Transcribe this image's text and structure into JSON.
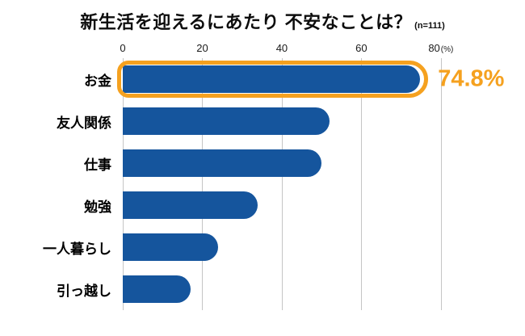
{
  "title": "新生活を迎えるにあたり 不安なことは？",
  "sample_note": "(n=111)",
  "colors": {
    "bar": "#15559D",
    "highlight": "#F5A11F",
    "grid": "#C5C5C5"
  },
  "chart_data": {
    "type": "bar",
    "orientation": "horizontal",
    "title": "新生活を迎えるにあたり 不安なことは？",
    "sample_note": "(n=111)",
    "categories": [
      "お金",
      "友人関係",
      "仕事",
      "勉強",
      "一人暮らし",
      "引っ越し"
    ],
    "values": [
      74.8,
      52,
      50,
      34,
      24,
      17
    ],
    "unit": "%",
    "x_ticks": [
      0,
      20,
      40,
      60,
      80
    ],
    "x_unit_label": "(%)",
    "xlim": [
      0,
      80
    ],
    "scale_max": 91,
    "grid": true,
    "legend": false,
    "highlight_index": 0,
    "highlight_label": "74.8%"
  }
}
